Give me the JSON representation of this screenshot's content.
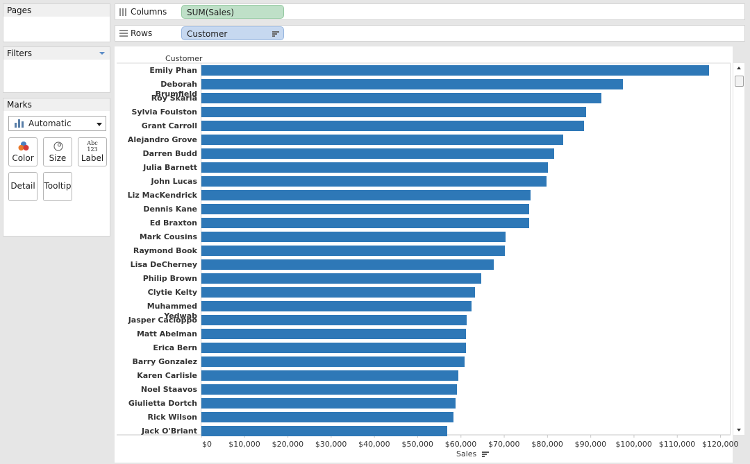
{
  "pages": {
    "title": "Pages"
  },
  "filters": {
    "title": "Filters"
  },
  "marks": {
    "title": "Marks",
    "type_selected": "Automatic",
    "buttons": {
      "color": "Color",
      "size": "Size",
      "label": "Label",
      "detail": "Detail",
      "tooltip": "Tooltip"
    },
    "label_icon_top": "Abc",
    "label_icon_bottom": "123"
  },
  "shelves": {
    "columns": {
      "label": "Columns",
      "pill": "SUM(Sales)"
    },
    "rows": {
      "label": "Rows",
      "pill": "Customer"
    }
  },
  "colors": {
    "bar": "#2e78b7"
  },
  "chart_data": {
    "type": "bar",
    "orientation": "horizontal",
    "row_header": "Customer",
    "xlabel": "Sales",
    "xlim": [
      0,
      122000
    ],
    "x_ticks": [
      "$0",
      "$10,000",
      "$20,000",
      "$30,000",
      "$40,000",
      "$50,000",
      "$60,000",
      "$70,000",
      "$80,000",
      "$90,000",
      "$100,000",
      "$110,000",
      "$120,000"
    ],
    "x_tick_values": [
      0,
      10000,
      20000,
      30000,
      40000,
      50000,
      60000,
      70000,
      80000,
      90000,
      100000,
      110000,
      120000
    ],
    "categories": [
      "Emily Phan",
      "Deborah Brumfield",
      "Roy Skaria",
      "Sylvia Foulston",
      "Grant Carroll",
      "Alejandro Grove",
      "Darren Budd",
      "Julia Barnett",
      "John Lucas",
      "Liz MacKendrick",
      "Dennis Kane",
      "Ed Braxton",
      "Mark Cousins",
      "Raymond Book",
      "Lisa DeCherney",
      "Philip Brown",
      "Clytie Kelty",
      "Muhammed Yedwab",
      "Jasper Cacioppo",
      "Matt Abelman",
      "Erica Bern",
      "Barry Gonzalez",
      "Karen Carlisle",
      "Noel Staavos",
      "Giulietta Dortch",
      "Rick Wilson",
      "Jack O'Briant"
    ],
    "values": [
      117300,
      97400,
      92500,
      88900,
      88400,
      83700,
      81600,
      80100,
      79800,
      76100,
      75800,
      75700,
      70300,
      70200,
      67600,
      64700,
      63200,
      62400,
      61400,
      61100,
      61100,
      60800,
      59400,
      59100,
      58800,
      58200,
      56800
    ]
  }
}
